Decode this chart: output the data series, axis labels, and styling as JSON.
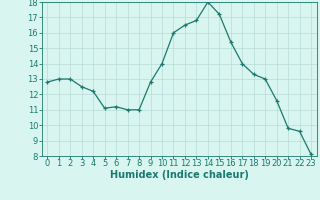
{
  "x": [
    0,
    1,
    2,
    3,
    4,
    5,
    6,
    7,
    8,
    9,
    10,
    11,
    12,
    13,
    14,
    15,
    16,
    17,
    18,
    19,
    20,
    21,
    22,
    23
  ],
  "y": [
    12.8,
    13.0,
    13.0,
    12.5,
    12.2,
    11.1,
    11.2,
    11.0,
    11.0,
    12.8,
    14.0,
    16.0,
    16.5,
    16.8,
    18.0,
    17.2,
    15.4,
    14.0,
    13.3,
    13.0,
    11.6,
    9.8,
    9.6,
    8.1
  ],
  "xlabel": "Humidex (Indice chaleur)",
  "ylim": [
    8,
    18
  ],
  "xlim": [
    -0.5,
    23.5
  ],
  "yticks": [
    8,
    9,
    10,
    11,
    12,
    13,
    14,
    15,
    16,
    17,
    18
  ],
  "xticks": [
    0,
    1,
    2,
    3,
    4,
    5,
    6,
    7,
    8,
    9,
    10,
    11,
    12,
    13,
    14,
    15,
    16,
    17,
    18,
    19,
    20,
    21,
    22,
    23
  ],
  "line_color": "#1a7a6e",
  "marker_color": "#1a7a6e",
  "bg_color": "#d8f5f0",
  "grid_color": "#b8dbd6",
  "tick_label_color": "#1a7a6e",
  "xlabel_color": "#1a7a6e",
  "xlabel_fontsize": 7,
  "tick_fontsize": 6
}
